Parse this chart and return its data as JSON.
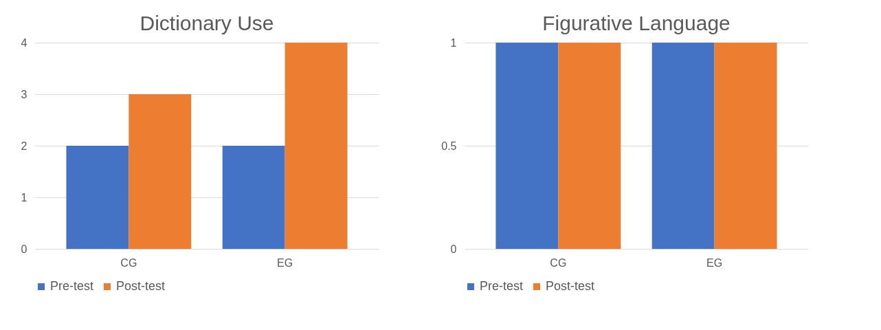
{
  "chart_data": [
    {
      "type": "bar",
      "title": "Dictionary Use",
      "categories": [
        "CG",
        "EG"
      ],
      "series": [
        {
          "name": "Pre-test",
          "color": "#4472c4",
          "values": [
            2,
            2
          ]
        },
        {
          "name": "Post-test",
          "color": "#ed7d31",
          "values": [
            3,
            4
          ]
        }
      ],
      "ylim": [
        0,
        4
      ],
      "yticks": [
        0,
        1,
        2,
        3,
        4
      ],
      "grid": "y",
      "legend": "bottom"
    },
    {
      "type": "bar",
      "title": "Figurative Language",
      "categories": [
        "CG",
        "EG"
      ],
      "series": [
        {
          "name": "Pre-test",
          "color": "#4472c4",
          "values": [
            1,
            1
          ]
        },
        {
          "name": "Post-test",
          "color": "#ed7d31",
          "values": [
            1,
            1
          ]
        }
      ],
      "ylim": [
        0,
        1
      ],
      "yticks": [
        0,
        0.5,
        1
      ],
      "grid": "y",
      "legend": "bottom"
    }
  ]
}
